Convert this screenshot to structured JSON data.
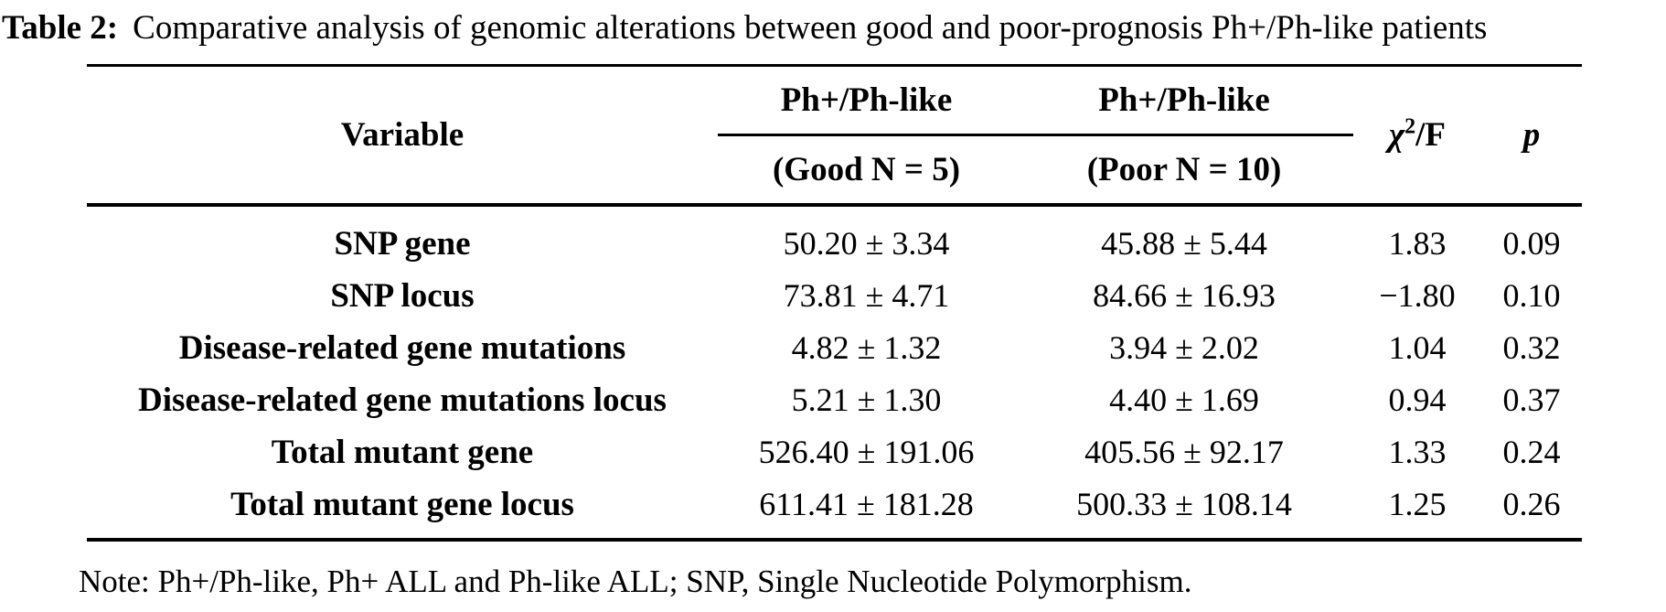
{
  "caption": {
    "label": "Table 2:",
    "text": "Comparative analysis of genomic alterations between good and poor-prognosis Ph+/Ph-like patients"
  },
  "table": {
    "header": {
      "variable": "Variable",
      "good_group": "Ph+/Ph-like",
      "poor_group": "Ph+/Ph-like",
      "good_sub": "(Good N = 5)",
      "poor_sub": "(Poor N = 10)",
      "chi_symbol": "χ",
      "chi_sup": "2",
      "chi_suffix": "/F",
      "p": "p"
    },
    "rows": [
      {
        "variable": "SNP gene",
        "good": "50.20 ± 3.34",
        "poor": "45.88 ± 5.44",
        "chi_f": "1.83",
        "p": "0.09"
      },
      {
        "variable": "SNP locus",
        "good": "73.81 ± 4.71",
        "poor": "84.66 ± 16.93",
        "chi_f": "−1.80",
        "p": "0.10"
      },
      {
        "variable": "Disease-related gene mutations",
        "good": "4.82 ± 1.32",
        "poor": "3.94 ± 2.02",
        "chi_f": "1.04",
        "p": "0.32"
      },
      {
        "variable": "Disease-related gene mutations locus",
        "good": "5.21 ± 1.30",
        "poor": "4.40 ± 1.69",
        "chi_f": "0.94",
        "p": "0.37"
      },
      {
        "variable": "Total mutant gene",
        "good": "526.40 ± 191.06",
        "poor": "405.56 ± 92.17",
        "chi_f": "1.33",
        "p": "0.24"
      },
      {
        "variable": "Total mutant gene locus",
        "good": "611.41 ± 181.28",
        "poor": "500.33 ± 108.14",
        "chi_f": "1.25",
        "p": "0.26"
      }
    ],
    "note": "Note: Ph+/Ph-like, Ph+ ALL and Ph-like ALL; SNP, Single Nucleotide Polymorphism."
  },
  "colors": {
    "text": "#000000",
    "background": "#ffffff",
    "rule": "#000000"
  }
}
